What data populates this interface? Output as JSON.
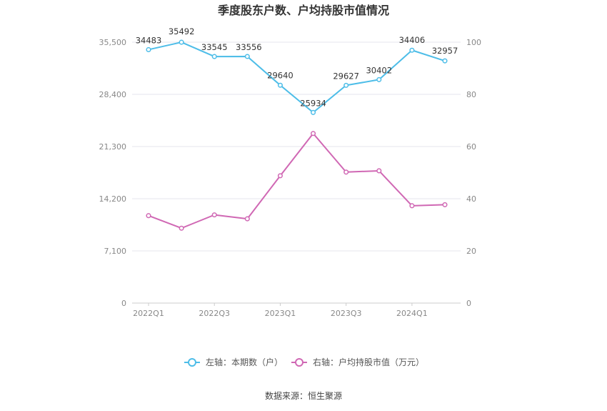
{
  "chart_data": {
    "type": "line",
    "title": "季度股东户数、户均持股市值情况",
    "x": [
      "2022Q1",
      "2022Q2",
      "2022Q3",
      "2022Q4",
      "2023Q1",
      "2023Q2",
      "2023Q3",
      "2023Q4",
      "2024Q1",
      "2024Q2"
    ],
    "x_tick_labels": [
      "2022Q1",
      "2022Q3",
      "2023Q1",
      "2023Q3",
      "2024Q1"
    ],
    "left_axis": {
      "ylim": [
        0,
        35500
      ],
      "ticks": [
        "0",
        "7,100",
        "14,200",
        "21,300",
        "28,400",
        "35,500"
      ]
    },
    "right_axis": {
      "ylim": [
        0,
        100
      ],
      "ticks": [
        "0",
        "20",
        "40",
        "60",
        "80",
        "100"
      ]
    },
    "series": [
      {
        "name": "左轴：本期数（户）",
        "axis": "left",
        "color": "#4dbde8",
        "values": [
          34483,
          35492,
          33545,
          33556,
          29640,
          25934,
          29627,
          30402,
          34406,
          32957
        ],
        "data_labels": [
          "34483",
          "35492",
          "33545",
          "33556",
          "29640",
          "25934",
          "29627",
          "30402",
          "34406",
          "32957"
        ]
      },
      {
        "name": "右轴：户均持股市值（万元）",
        "axis": "right",
        "color": "#d068b4",
        "values": [
          33.5,
          28.7,
          33.8,
          32.3,
          48.8,
          65.0,
          50.2,
          50.7,
          37.3,
          37.7
        ]
      }
    ],
    "grid": true,
    "legend_position": "bottom-center",
    "source": "数据来源：恒生聚源"
  }
}
